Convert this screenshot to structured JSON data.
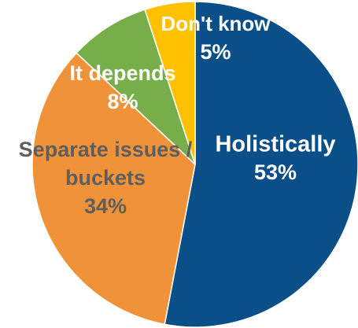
{
  "chart_data": {
    "type": "pie",
    "title": "",
    "slices": [
      {
        "label": "Holistically",
        "value": 53,
        "value_label": "53%",
        "color": "#0B4F88",
        "text_color": "#ffffff"
      },
      {
        "label": "Separate issues / buckets",
        "label_lines": [
          "Separate issues /",
          "buckets"
        ],
        "value": 34,
        "value_label": "34%",
        "color": "#F0923A",
        "text_color": "#5E5E5E"
      },
      {
        "label": "It depends",
        "value": 8,
        "value_label": "8%",
        "color": "#77AE4A",
        "text_color": "#ffffff"
      },
      {
        "label": "Don't know",
        "value": 5,
        "value_label": "5%",
        "color": "#FFC000",
        "text_color": "#ffffff"
      }
    ]
  }
}
